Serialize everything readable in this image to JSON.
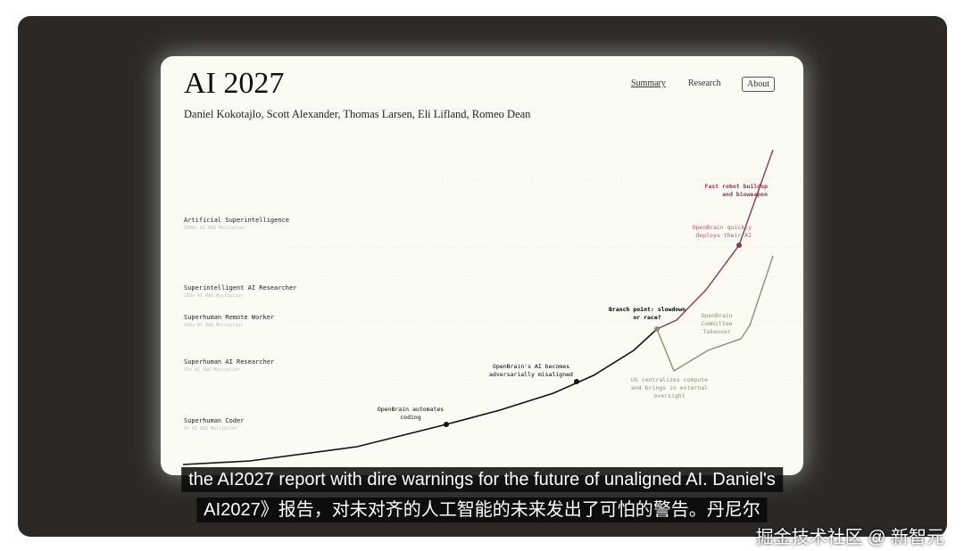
{
  "page": {
    "title": "AI 2027",
    "authors": "Daniel Kokotajlo, Scott Alexander, Thomas Larsen, Eli Lifland, Romeo Dean",
    "nav": [
      {
        "label": "Summary"
      },
      {
        "label": "Research"
      },
      {
        "label": "About"
      }
    ]
  },
  "levels": [
    {
      "name": "Artificial Superintelligence",
      "multiplier": "2000x AI R&D Multiplier"
    },
    {
      "name": "Superintelligent AI Researcher",
      "multiplier": "250x AI R&D Multiplier"
    },
    {
      "name": "Superhuman Remote Worker",
      "multiplier": "100x AI R&D Multiplier"
    },
    {
      "name": "Superhuman AI Researcher",
      "multiplier": "25x AI R&D Multiplier"
    },
    {
      "name": "Superhuman Coder",
      "multiplier": "4x AI R&D Multiplier"
    }
  ],
  "annotations": {
    "automates": "OpenBrain automates coding",
    "misaligned": "OpenBrain's AI becomes adversarially misaligned",
    "branch": "Branch point: slowdown or race?",
    "robot": "Fast robot buildup and bioweapon",
    "deploys": "OpenBrain quickly deploys their AI",
    "committee": "OpenBrain Committee Takeover",
    "centralizes": "US centralizes compute and brings in external oversight"
  },
  "colors": {
    "race": "#8c3a4a",
    "slowdown": "#8a9070",
    "main": "#111111"
  },
  "subtitles": {
    "english": "the AI2027 report with dire warnings for the future of unaligned AI. Daniel's",
    "chinese": "AI2027》报告，对未对齐的人工智能的未来发出了可怕的警告。丹尼尔"
  },
  "watermark": "掘金技术社区 @ 新智元"
}
